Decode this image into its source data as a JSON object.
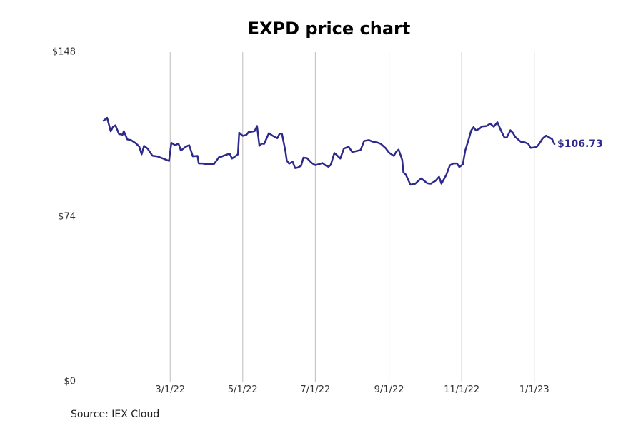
{
  "chart_data": {
    "type": "line",
    "title": "EXPD price chart",
    "source": "Source: IEX Cloud",
    "last_value_label": "$106.73",
    "y_ticks": [
      {
        "value": 148,
        "label": "$148"
      },
      {
        "value": 74,
        "label": "$74"
      },
      {
        "value": 0,
        "label": "$0"
      }
    ],
    "x_ticks": [
      {
        "date": "2022-03-01",
        "label": "3/1/22"
      },
      {
        "date": "2022-05-01",
        "label": "5/1/22"
      },
      {
        "date": "2022-07-01",
        "label": "7/1/22"
      },
      {
        "date": "2022-09-01",
        "label": "9/1/22"
      },
      {
        "date": "2022-11-01",
        "label": "11/1/22"
      },
      {
        "date": "2023-01-01",
        "label": "1/1/23"
      }
    ],
    "xlim": [
      "2022-01-04",
      "2023-01-18"
    ],
    "ylim": [
      0,
      148
    ],
    "grid": "vertical",
    "legend": "none",
    "series": [
      {
        "color": "#2e2a8c",
        "points": [
          [
            "2022-01-04",
            117.2
          ],
          [
            "2022-01-07",
            118.5
          ],
          [
            "2022-01-10",
            112.4
          ],
          [
            "2022-01-12",
            114.5
          ],
          [
            "2022-01-14",
            115.1
          ],
          [
            "2022-01-17",
            111.2
          ],
          [
            "2022-01-20",
            110.9
          ],
          [
            "2022-01-21",
            112.5
          ],
          [
            "2022-01-24",
            108.8
          ],
          [
            "2022-01-27",
            108.5
          ],
          [
            "2022-01-31",
            107.1
          ],
          [
            "2022-02-03",
            105.6
          ],
          [
            "2022-02-05",
            102.1
          ],
          [
            "2022-02-07",
            105.9
          ],
          [
            "2022-02-10",
            104.7
          ],
          [
            "2022-02-14",
            101.5
          ],
          [
            "2022-02-18",
            101.2
          ],
          [
            "2022-02-24",
            100.0
          ],
          [
            "2022-02-28",
            99.1
          ],
          [
            "2022-03-02",
            107.3
          ],
          [
            "2022-03-05",
            106.2
          ],
          [
            "2022-03-08",
            106.9
          ],
          [
            "2022-03-10",
            103.8
          ],
          [
            "2022-03-14",
            105.5
          ],
          [
            "2022-03-17",
            106.2
          ],
          [
            "2022-03-20",
            101.2
          ],
          [
            "2022-03-24",
            101.4
          ],
          [
            "2022-03-25",
            98.0
          ],
          [
            "2022-03-28",
            98.0
          ],
          [
            "2022-04-01",
            97.6
          ],
          [
            "2022-04-04",
            97.7
          ],
          [
            "2022-04-07",
            97.8
          ],
          [
            "2022-04-11",
            100.8
          ],
          [
            "2022-04-13",
            101.0
          ],
          [
            "2022-04-15",
            101.5
          ],
          [
            "2022-04-20",
            102.4
          ],
          [
            "2022-04-22",
            100.2
          ],
          [
            "2022-04-25",
            101.3
          ],
          [
            "2022-04-27",
            102.1
          ],
          [
            "2022-04-28",
            111.8
          ],
          [
            "2022-05-01",
            110.4
          ],
          [
            "2022-05-04",
            110.8
          ],
          [
            "2022-05-06",
            112.1
          ],
          [
            "2022-05-09",
            112.3
          ],
          [
            "2022-05-11",
            112.5
          ],
          [
            "2022-05-13",
            114.8
          ],
          [
            "2022-05-15",
            105.9
          ],
          [
            "2022-05-17",
            106.9
          ],
          [
            "2022-05-19",
            106.8
          ],
          [
            "2022-05-23",
            111.6
          ],
          [
            "2022-05-26",
            110.5
          ],
          [
            "2022-05-30",
            109.3
          ],
          [
            "2022-06-01",
            111.4
          ],
          [
            "2022-06-03",
            111.3
          ],
          [
            "2022-06-06",
            103.2
          ],
          [
            "2022-06-07",
            99.3
          ],
          [
            "2022-06-09",
            97.9
          ],
          [
            "2022-06-12",
            98.7
          ],
          [
            "2022-06-14",
            95.9
          ],
          [
            "2022-06-16",
            96.1
          ],
          [
            "2022-06-19",
            96.9
          ],
          [
            "2022-06-21",
            100.6
          ],
          [
            "2022-06-24",
            100.4
          ],
          [
            "2022-06-28",
            98.2
          ],
          [
            "2022-07-01",
            97.2
          ],
          [
            "2022-07-05",
            97.8
          ],
          [
            "2022-07-07",
            98.2
          ],
          [
            "2022-07-10",
            97.0
          ],
          [
            "2022-07-12",
            96.5
          ],
          [
            "2022-07-14",
            97.4
          ],
          [
            "2022-07-17",
            102.7
          ],
          [
            "2022-07-19",
            101.8
          ],
          [
            "2022-07-22",
            100.2
          ],
          [
            "2022-07-25",
            104.7
          ],
          [
            "2022-07-29",
            105.5
          ],
          [
            "2022-08-01",
            103.1
          ],
          [
            "2022-08-04",
            103.5
          ],
          [
            "2022-08-08",
            104.0
          ],
          [
            "2022-08-11",
            108.1
          ],
          [
            "2022-08-15",
            108.5
          ],
          [
            "2022-08-18",
            107.8
          ],
          [
            "2022-08-22",
            107.4
          ],
          [
            "2022-08-25",
            106.8
          ],
          [
            "2022-08-29",
            104.9
          ],
          [
            "2022-09-01",
            102.8
          ],
          [
            "2022-09-05",
            101.4
          ],
          [
            "2022-09-07",
            103.3
          ],
          [
            "2022-09-09",
            104.2
          ],
          [
            "2022-09-12",
            99.6
          ],
          [
            "2022-09-13",
            94.0
          ],
          [
            "2022-09-15",
            93.0
          ],
          [
            "2022-09-19",
            88.4
          ],
          [
            "2022-09-23",
            88.9
          ],
          [
            "2022-09-25",
            89.9
          ],
          [
            "2022-09-28",
            91.3
          ],
          [
            "2022-10-03",
            89.1
          ],
          [
            "2022-10-06",
            88.9
          ],
          [
            "2022-10-10",
            90.2
          ],
          [
            "2022-10-13",
            92.0
          ],
          [
            "2022-10-15",
            88.9
          ],
          [
            "2022-10-19",
            92.8
          ],
          [
            "2022-10-22",
            97.1
          ],
          [
            "2022-10-25",
            98.0
          ],
          [
            "2022-10-28",
            98.0
          ],
          [
            "2022-10-30",
            96.4
          ],
          [
            "2022-11-02",
            97.6
          ],
          [
            "2022-11-04",
            103.8
          ],
          [
            "2022-11-07",
            109.0
          ],
          [
            "2022-11-09",
            112.8
          ],
          [
            "2022-11-11",
            114.3
          ],
          [
            "2022-11-13",
            112.8
          ],
          [
            "2022-11-16",
            113.6
          ],
          [
            "2022-11-18",
            114.6
          ],
          [
            "2022-11-22",
            114.8
          ],
          [
            "2022-11-25",
            115.9
          ],
          [
            "2022-11-28",
            114.5
          ],
          [
            "2022-12-01",
            116.5
          ],
          [
            "2022-12-04",
            112.8
          ],
          [
            "2022-12-07",
            109.6
          ],
          [
            "2022-12-09",
            109.7
          ],
          [
            "2022-12-12",
            112.9
          ],
          [
            "2022-12-14",
            111.8
          ],
          [
            "2022-12-16",
            109.9
          ],
          [
            "2022-12-19",
            108.5
          ],
          [
            "2022-12-21",
            107.6
          ],
          [
            "2022-12-23",
            107.7
          ],
          [
            "2022-12-27",
            106.8
          ],
          [
            "2022-12-29",
            105.0
          ],
          [
            "2023-01-01",
            105.2
          ],
          [
            "2023-01-03",
            105.4
          ],
          [
            "2023-01-05",
            106.7
          ],
          [
            "2023-01-08",
            109.2
          ],
          [
            "2023-01-11",
            110.5
          ],
          [
            "2023-01-14",
            109.6
          ],
          [
            "2023-01-16",
            108.9
          ],
          [
            "2023-01-18",
            106.7
          ]
        ]
      }
    ]
  }
}
